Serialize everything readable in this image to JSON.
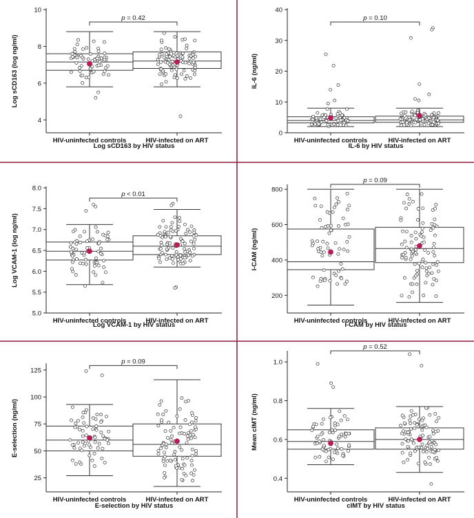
{
  "colors": {
    "divider": "#8b1a3a",
    "mean_marker": "#c2185b",
    "point_fill": "#ffffff",
    "point_stroke": "#333333",
    "box_stroke": "#333333"
  },
  "chart_data": [
    {
      "type": "box",
      "caption": "Log sCD163 by HIV status",
      "ylabel": "Log sCD163 (log ng/ml)",
      "ylim": [
        3.3,
        10
      ],
      "yticks": [
        4,
        6,
        8,
        10
      ],
      "categories": [
        "HIV-uninfected controls",
        "HIV-infected on ART"
      ],
      "p_value": "p = 0.42",
      "boxes": [
        {
          "whisker_low": 5.8,
          "q1": 6.7,
          "median": 7.15,
          "q3": 7.6,
          "whisker_high": 8.8,
          "mean": 7.05,
          "n": 65
        },
        {
          "whisker_low": 5.8,
          "q1": 6.8,
          "median": 7.2,
          "q3": 7.7,
          "whisker_high": 8.8,
          "mean": 7.15,
          "n": 95
        }
      ],
      "outliers": [
        [
          5.2,
          5.5
        ],
        [
          4.2
        ]
      ]
    },
    {
      "type": "box",
      "caption": "IL-6 by HIV status",
      "ylabel": "IL-6 (ng/ml)",
      "ylim": [
        0,
        40
      ],
      "yticks": [
        0,
        10,
        20,
        30,
        40
      ],
      "categories": [
        "HIV-uninfected controls",
        "HIV-infected on ART"
      ],
      "p_value": "p = 0.10",
      "boxes": [
        {
          "whisker_low": 2.0,
          "q1": 3.2,
          "median": 4.0,
          "q3": 5.2,
          "whisker_high": 8.0,
          "mean": 4.8,
          "n": 65
        },
        {
          "whisker_low": 2.0,
          "q1": 3.4,
          "median": 4.2,
          "q3": 5.4,
          "whisker_high": 8.0,
          "mean": 5.6,
          "n": 95
        }
      ],
      "outliers": [
        [
          25.5,
          21.8,
          15.5,
          14.0,
          10.5,
          9.5
        ],
        [
          34.0,
          33.5,
          30.8,
          15.8,
          12.5,
          11.0,
          10.5
        ]
      ]
    },
    {
      "type": "box",
      "caption": "Log VCAM-1 by HIV status",
      "ylabel": "Log VCAM-1 (log ng/ml)",
      "ylim": [
        5.0,
        8.0
      ],
      "yticks": [
        5.0,
        5.5,
        6.0,
        6.5,
        7.0,
        7.5,
        8.0
      ],
      "categories": [
        "HIV-uninfected controls",
        "HIV-infected on ART"
      ],
      "p_value": "p < 0.01",
      "boxes": [
        {
          "whisker_low": 5.68,
          "q1": 6.27,
          "median": 6.48,
          "q3": 6.7,
          "whisker_high": 7.12,
          "mean": 6.48,
          "n": 65
        },
        {
          "whisker_low": 6.1,
          "q1": 6.4,
          "median": 6.6,
          "q3": 6.85,
          "whisker_high": 7.48,
          "mean": 6.63,
          "n": 95
        }
      ],
      "outliers": [
        [
          7.6,
          7.55,
          7.45,
          5.65
        ],
        [
          7.62,
          7.58,
          5.62,
          5.6
        ]
      ]
    },
    {
      "type": "box",
      "caption": "I-CAM by HIV status",
      "ylabel": "I-CAM (ng/ml)",
      "ylim": [
        100,
        820
      ],
      "yticks": [
        200,
        400,
        600,
        800
      ],
      "categories": [
        "HIV-uninfected controls",
        "HIV-infected on ART"
      ],
      "p_value": "p = 0.09",
      "boxes": [
        {
          "whisker_low": 145,
          "q1": 345,
          "median": 390,
          "q3": 575,
          "whisker_high": 800,
          "mean": 445,
          "n": 65
        },
        {
          "whisker_low": 160,
          "q1": 385,
          "median": 465,
          "q3": 585,
          "whisker_high": 800,
          "mean": 480,
          "n": 95
        }
      ],
      "outliers": [
        [],
        []
      ]
    },
    {
      "type": "box",
      "caption": "E-selection by HIV status",
      "ylabel": "E-selection (ng/ml)",
      "ylim": [
        12,
        130
      ],
      "yticks": [
        25,
        50,
        75,
        100,
        125
      ],
      "categories": [
        "HIV-uninfected controls",
        "HIV-infected on ART"
      ],
      "p_value": "p = 0.09",
      "boxes": [
        {
          "whisker_low": 27,
          "q1": 50,
          "median": 60,
          "q3": 73,
          "whisker_high": 93,
          "mean": 62,
          "n": 65
        },
        {
          "whisker_low": 17,
          "q1": 45,
          "median": 56,
          "q3": 75,
          "whisker_high": 116,
          "mean": 59,
          "n": 95
        }
      ],
      "outliers": [
        [
          124,
          120
        ],
        []
      ]
    },
    {
      "type": "box",
      "caption": "cIMT by HIV status",
      "ylabel": "Mean cIMT (ng/ml)",
      "ylim": [
        0.33,
        1.05
      ],
      "yticks": [
        0.4,
        0.6,
        0.8,
        1.0
      ],
      "categories": [
        "HIV-uninfected controls",
        "HIV-infected on ART"
      ],
      "p_value": "p = 0.52",
      "boxes": [
        {
          "whisker_low": 0.47,
          "q1": 0.55,
          "median": 0.59,
          "q3": 0.65,
          "whisker_high": 0.76,
          "mean": 0.58,
          "n": 65
        },
        {
          "whisker_low": 0.43,
          "q1": 0.55,
          "median": 0.6,
          "q3": 0.66,
          "whisker_high": 0.77,
          "mean": 0.6,
          "n": 95
        }
      ],
      "outliers": [
        [
          0.99,
          0.89,
          0.87
        ],
        [
          1.04,
          0.98,
          0.37
        ]
      ]
    }
  ]
}
